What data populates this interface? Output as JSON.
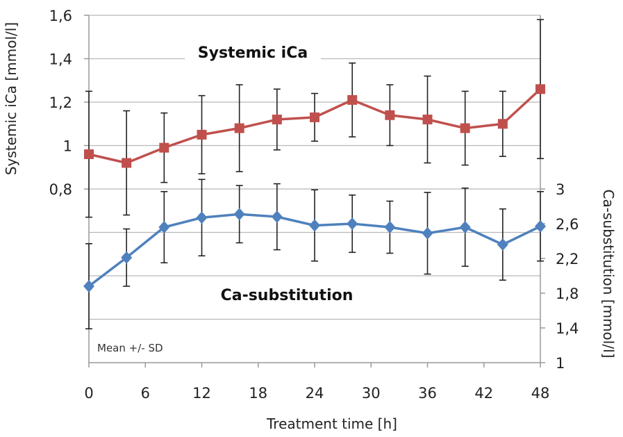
{
  "chart_data": {
    "type": "line",
    "x": [
      0,
      4,
      8,
      12,
      16,
      20,
      24,
      28,
      32,
      36,
      40,
      44,
      48
    ],
    "xticks": [
      "0",
      "6",
      "12",
      "18",
      "24",
      "30",
      "36",
      "42",
      "48"
    ],
    "xtick_values": [
      0,
      6,
      12,
      18,
      24,
      30,
      36,
      42,
      48
    ],
    "xlabel": "Treatment time [h]",
    "xlim": [
      0,
      48
    ],
    "y_left": {
      "label": "Systemic iCa [mmol/l]",
      "ticks": [
        "0,8",
        "1",
        "1,2",
        "1,4",
        "1,6"
      ],
      "tick_values": [
        0.8,
        1.0,
        1.2,
        1.4,
        1.6
      ],
      "range": [
        0,
        1.6
      ]
    },
    "y_right": {
      "label": "Ca-substitution [mmol/l]",
      "ticks": [
        "1",
        "1,4",
        "1,8",
        "2,2",
        "2,6",
        "3"
      ],
      "tick_values": [
        1.0,
        1.4,
        1.8,
        2.2,
        2.6,
        3.0
      ],
      "range": [
        1.0,
        5.0
      ]
    },
    "grid": true,
    "series": [
      {
        "name": "Systemic iCa",
        "axis": "left",
        "color": "#c0504d",
        "marker": "square",
        "values": [
          0.96,
          0.92,
          0.99,
          1.05,
          1.08,
          1.12,
          1.13,
          1.21,
          1.14,
          1.12,
          1.08,
          1.1,
          1.26
        ],
        "sd": [
          0.29,
          0.24,
          0.16,
          0.18,
          0.2,
          0.14,
          0.11,
          0.17,
          0.14,
          0.2,
          0.17,
          0.15,
          0.32
        ]
      },
      {
        "name": "Ca-substitution",
        "axis": "right",
        "color": "#4f81bd",
        "marker": "diamond",
        "values": [
          1.88,
          2.21,
          2.56,
          2.67,
          2.71,
          2.68,
          2.58,
          2.6,
          2.56,
          2.49,
          2.56,
          2.36,
          2.57
        ],
        "sd": [
          0.49,
          0.33,
          0.41,
          0.44,
          0.33,
          0.38,
          0.41,
          0.33,
          0.3,
          0.47,
          0.45,
          0.41,
          0.4
        ]
      }
    ],
    "annotation": "Mean +/- SD"
  }
}
